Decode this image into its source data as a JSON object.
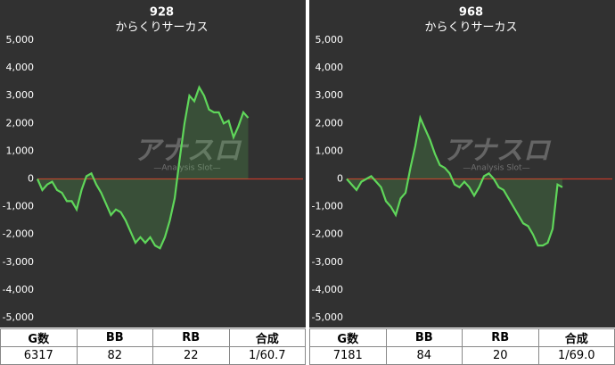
{
  "chart_data": [
    {
      "type": "line",
      "title": "928",
      "subtitle": "からくりサーカス",
      "color": "#5fd65a",
      "values": [
        0,
        -400,
        -200,
        -100,
        -400,
        -500,
        -800,
        -800,
        -1100,
        -400,
        100,
        200,
        -200,
        -500,
        -900,
        -1300,
        -1100,
        -1200,
        -1500,
        -1900,
        -2300,
        -2100,
        -2300,
        -2100,
        -2400,
        -2500,
        -2100,
        -1500,
        -700,
        700,
        2000,
        3000,
        2800,
        3300,
        3000,
        2500,
        2400,
        2400,
        2000,
        2100,
        1500,
        1900,
        2400,
        2200
      ],
      "ylim": [
        -5000,
        5000
      ],
      "yticks": [
        {
          "value": -5000,
          "label": "-5,000"
        },
        {
          "value": -4000,
          "label": "-4,000"
        },
        {
          "value": -3000,
          "label": "-3,000"
        },
        {
          "value": -2000,
          "label": "-2,000"
        },
        {
          "value": -1000,
          "label": "-1,000"
        },
        0,
        {
          "value": 1000,
          "label": "1,000"
        },
        {
          "value": 2000,
          "label": "2,000"
        },
        {
          "value": 3000,
          "label": "3,000"
        },
        {
          "value": 4000,
          "label": "4,000"
        },
        {
          "value": 5000,
          "label": "5,000"
        }
      ],
      "zero_line_color": "#c0392b",
      "grid": false,
      "watermark": "アナスロ",
      "watermark_sub": "—Analysis Slot—"
    },
    {
      "type": "line",
      "title": "968",
      "subtitle": "からくりサーカス",
      "color": "#5fd65a",
      "values": [
        0,
        -200,
        -400,
        -100,
        0,
        100,
        -100,
        -300,
        -800,
        -1000,
        -1300,
        -700,
        -500,
        400,
        1200,
        2200,
        1800,
        1400,
        900,
        500,
        400,
        200,
        -200,
        -300,
        -100,
        -300,
        -600,
        -300,
        100,
        200,
        0,
        -300,
        -400,
        -700,
        -1000,
        -1300,
        -1600,
        -1700,
        -2000,
        -2400,
        -2400,
        -2300,
        -1800,
        -200,
        -300
      ],
      "ylim": [
        -5000,
        5000
      ],
      "yticks": [
        {
          "value": -5000,
          "label": "-5,000"
        },
        {
          "value": -4000,
          "label": "-4,000"
        },
        {
          "value": -3000,
          "label": "-3,000"
        },
        {
          "value": -2000,
          "label": "-2,000"
        },
        {
          "value": -1000,
          "label": "-1,000"
        },
        0,
        {
          "value": 1000,
          "label": "1,000"
        },
        {
          "value": 2000,
          "label": "2,000"
        },
        {
          "value": 3000,
          "label": "3,000"
        },
        {
          "value": 4000,
          "label": "4,000"
        },
        {
          "value": 5000,
          "label": "5,000"
        }
      ],
      "zero_line_color": "#c0392b",
      "grid": false,
      "watermark": "アナスロ",
      "watermark_sub": "—Analysis Slot—"
    }
  ],
  "tables": [
    {
      "header": [
        "G数",
        "BB",
        "RB",
        "合成"
      ],
      "row": [
        "6317",
        "82",
        "22",
        "1/60.7"
      ]
    },
    {
      "header": [
        "G数",
        "BB",
        "RB",
        "合成"
      ],
      "row": [
        "7181",
        "84",
        "20",
        "1/69.0"
      ]
    }
  ]
}
